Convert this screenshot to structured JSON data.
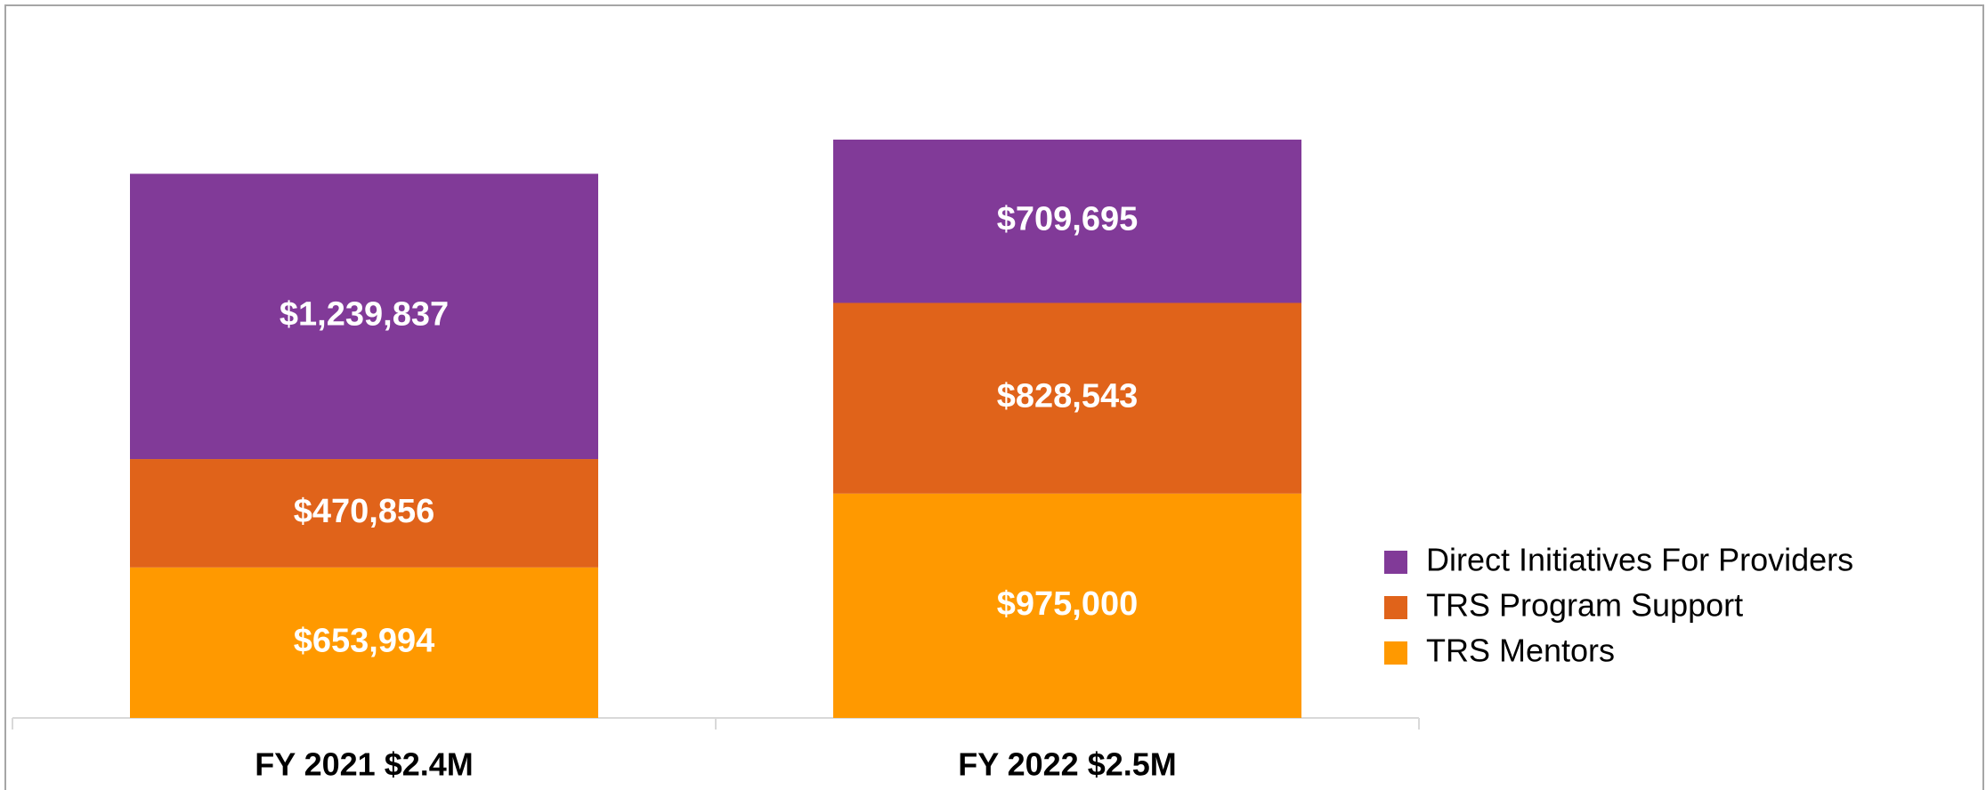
{
  "chart_data": {
    "type": "stacked_bar",
    "categories": [
      "FY 2021 $2.4M",
      "FY 2022 $2.5M"
    ],
    "series": [
      {
        "name": "TRS Mentors",
        "color": "#ff9900",
        "values": [
          653994,
          975000
        ],
        "value_labels": [
          "$653,994",
          "$975,000"
        ]
      },
      {
        "name": "TRS Program Support",
        "color": "#e0631a",
        "values": [
          470856,
          828543
        ],
        "value_labels": [
          "$470,856",
          "$828,543"
        ]
      },
      {
        "name": "Direct Initiatives For Providers",
        "color": "#813a98",
        "values": [
          1239837,
          709695
        ],
        "value_labels": [
          "$1,239,837",
          "$709,695"
        ]
      }
    ],
    "ylim": [
      0,
      3000000
    ],
    "legend": "right"
  }
}
